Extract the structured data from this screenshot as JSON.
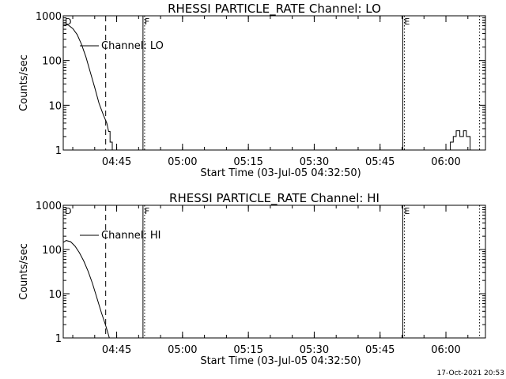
{
  "timestamp": "17-Oct-2021 20:53",
  "chart_data": [
    {
      "type": "line",
      "title": "RHESSI PARTICLE_RATE Channel: LO",
      "xlabel": "Start Time (03-Jul-05 04:32:50)",
      "ylabel": "Counts/sec",
      "ylog": true,
      "ylim": [
        1,
        1000
      ],
      "xlim": [
        "04:32:50",
        "06:09:00"
      ],
      "x_ticks": [
        "04:45",
        "05:00",
        "05:15",
        "05:30",
        "05:45",
        "06:00"
      ],
      "y_ticks": [
        "1",
        "10",
        "100",
        "1000"
      ],
      "legend": {
        "label": "Channel: LO",
        "placement": "top-left"
      },
      "markers": [
        {
          "label": "D",
          "time": "04:32:50",
          "style": "none"
        },
        {
          "label": "",
          "time": "04:42:30",
          "style": "dashed"
        },
        {
          "label": "F",
          "time": "04:51:00",
          "style": "solid"
        },
        {
          "label": "E",
          "time": "05:50:10",
          "style": "solid"
        },
        {
          "label": "",
          "time": "06:07:40",
          "style": "dotted"
        }
      ],
      "series": [
        {
          "x": [
            "04:32:50",
            "04:34:00",
            "04:35:00",
            "04:36:00",
            "04:37:00",
            "04:38:00",
            "04:39:00",
            "04:40:00",
            "04:41:00",
            "04:42:00",
            "04:42:45",
            "04:43:10",
            "04:43:30",
            "04:43:30",
            "04:44:00",
            "04:44:00"
          ],
          "y": [
            650,
            620,
            520,
            380,
            230,
            120,
            55,
            25,
            11,
            6,
            4,
            2.6,
            2.6,
            1.5,
            1.5,
            1
          ]
        },
        {
          "x": [
            "06:00:00",
            "06:00:30",
            "06:01:00",
            "06:01:00",
            "06:01:40",
            "06:01:40",
            "06:02:20",
            "06:02:20",
            "06:03:10",
            "06:03:10",
            "06:04:00",
            "06:04:00",
            "06:04:40",
            "06:04:40",
            "06:05:30",
            "06:05:30",
            "06:06:00"
          ],
          "y": [
            1,
            1,
            1,
            1.5,
            1.5,
            2,
            2,
            2.7,
            2.7,
            2,
            2,
            2.7,
            2.7,
            2,
            2,
            1,
            1
          ]
        }
      ]
    },
    {
      "type": "line",
      "title": "RHESSI PARTICLE_RATE Channel: HI",
      "xlabel": "Start Time (03-Jul-05 04:32:50)",
      "ylabel": "Counts/sec",
      "ylog": true,
      "ylim": [
        1,
        1000
      ],
      "xlim": [
        "04:32:50",
        "06:09:00"
      ],
      "x_ticks": [
        "04:45",
        "05:00",
        "05:15",
        "05:30",
        "05:45",
        "06:00"
      ],
      "y_ticks": [
        "1",
        "10",
        "100",
        "1000"
      ],
      "legend": {
        "label": "Channel: HI",
        "placement": "top-left"
      },
      "markers": [
        {
          "label": "D",
          "time": "04:32:50",
          "style": "none"
        },
        {
          "label": "",
          "time": "04:42:30",
          "style": "dashed"
        },
        {
          "label": "F",
          "time": "04:51:00",
          "style": "solid"
        },
        {
          "label": "E",
          "time": "05:50:10",
          "style": "solid"
        },
        {
          "label": "",
          "time": "06:07:40",
          "style": "dotted"
        }
      ],
      "series": [
        {
          "x": [
            "04:32:50",
            "04:33:30",
            "04:34:30",
            "04:35:30",
            "04:36:30",
            "04:37:30",
            "04:38:30",
            "04:39:30",
            "04:40:30",
            "04:41:30",
            "04:42:30",
            "04:43:00",
            "04:43:20"
          ],
          "y": [
            145,
            160,
            150,
            120,
            85,
            55,
            32,
            17,
            8,
            3.8,
            1.9,
            1.3,
            1
          ]
        }
      ]
    }
  ]
}
